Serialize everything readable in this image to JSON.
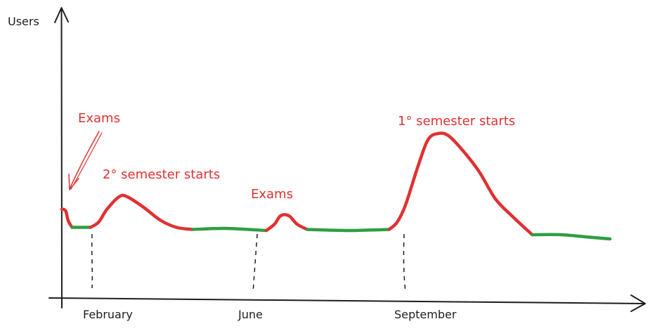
{
  "chart_data": {
    "type": "line",
    "title": "",
    "ylabel": "Users",
    "xlabel": "",
    "x_ticks": [
      {
        "label": "February",
        "month": 2
      },
      {
        "label": "June",
        "month": 6
      },
      {
        "label": "September",
        "month": 9
      }
    ],
    "colors": {
      "axis": "#1e1e1e",
      "high_usage": "#e03131",
      "low_usage": "#2f9e44",
      "annotation": "#e03131"
    },
    "series": [
      {
        "segments": [
          {
            "status": "high_usage",
            "points": [
              [
                1.0,
                0.42
              ],
              [
                1.05,
                0.42
              ],
              [
                1.1,
                0.41
              ],
              [
                1.15,
                0.37
              ],
              [
                1.2,
                0.35
              ],
              [
                1.25,
                0.335
              ]
            ]
          },
          {
            "status": "low_usage",
            "points": [
              [
                1.25,
                0.335
              ],
              [
                1.4,
                0.335
              ],
              [
                1.7,
                0.335
              ]
            ]
          },
          {
            "status": "high_usage",
            "points": [
              [
                1.7,
                0.335
              ],
              [
                1.9,
                0.36
              ],
              [
                2.1,
                0.42
              ],
              [
                2.4,
                0.48
              ],
              [
                2.6,
                0.48
              ],
              [
                3.0,
                0.43
              ],
              [
                3.4,
                0.37
              ],
              [
                3.8,
                0.335
              ],
              [
                4.2,
                0.325
              ]
            ]
          },
          {
            "status": "low_usage",
            "points": [
              [
                4.2,
                0.325
              ],
              [
                5.0,
                0.33
              ],
              [
                6.0,
                0.32
              ]
            ]
          },
          {
            "status": "high_usage",
            "points": [
              [
                6.0,
                0.32
              ],
              [
                6.2,
                0.35
              ],
              [
                6.35,
                0.39
              ],
              [
                6.55,
                0.39
              ],
              [
                6.75,
                0.35
              ],
              [
                7.0,
                0.325
              ]
            ]
          },
          {
            "status": "low_usage",
            "points": [
              [
                7.0,
                0.325
              ],
              [
                8.0,
                0.32
              ],
              [
                9.0,
                0.325
              ]
            ]
          },
          {
            "status": "high_usage",
            "points": [
              [
                9.0,
                0.325
              ],
              [
                9.2,
                0.36
              ],
              [
                9.4,
                0.44
              ],
              [
                9.7,
                0.62
              ],
              [
                9.95,
                0.75
              ],
              [
                10.2,
                0.78
              ],
              [
                10.45,
                0.77
              ],
              [
                10.8,
                0.7
              ],
              [
                11.2,
                0.6
              ],
              [
                11.6,
                0.47
              ],
              [
                12.0,
                0.39
              ],
              [
                12.5,
                0.3
              ]
            ]
          },
          {
            "status": "low_usage",
            "points": [
              [
                12.5,
                0.3
              ],
              [
                13.2,
                0.3
              ],
              [
                13.8,
                0.29
              ],
              [
                14.4,
                0.28
              ]
            ]
          }
        ]
      }
    ],
    "annotations": [
      {
        "text": "Exams",
        "has_arrow": true
      },
      {
        "text": "2° semester starts",
        "has_arrow": false
      },
      {
        "text": "Exams",
        "has_arrow": false
      },
      {
        "text": "1° semester starts",
        "has_arrow": false
      }
    ]
  }
}
